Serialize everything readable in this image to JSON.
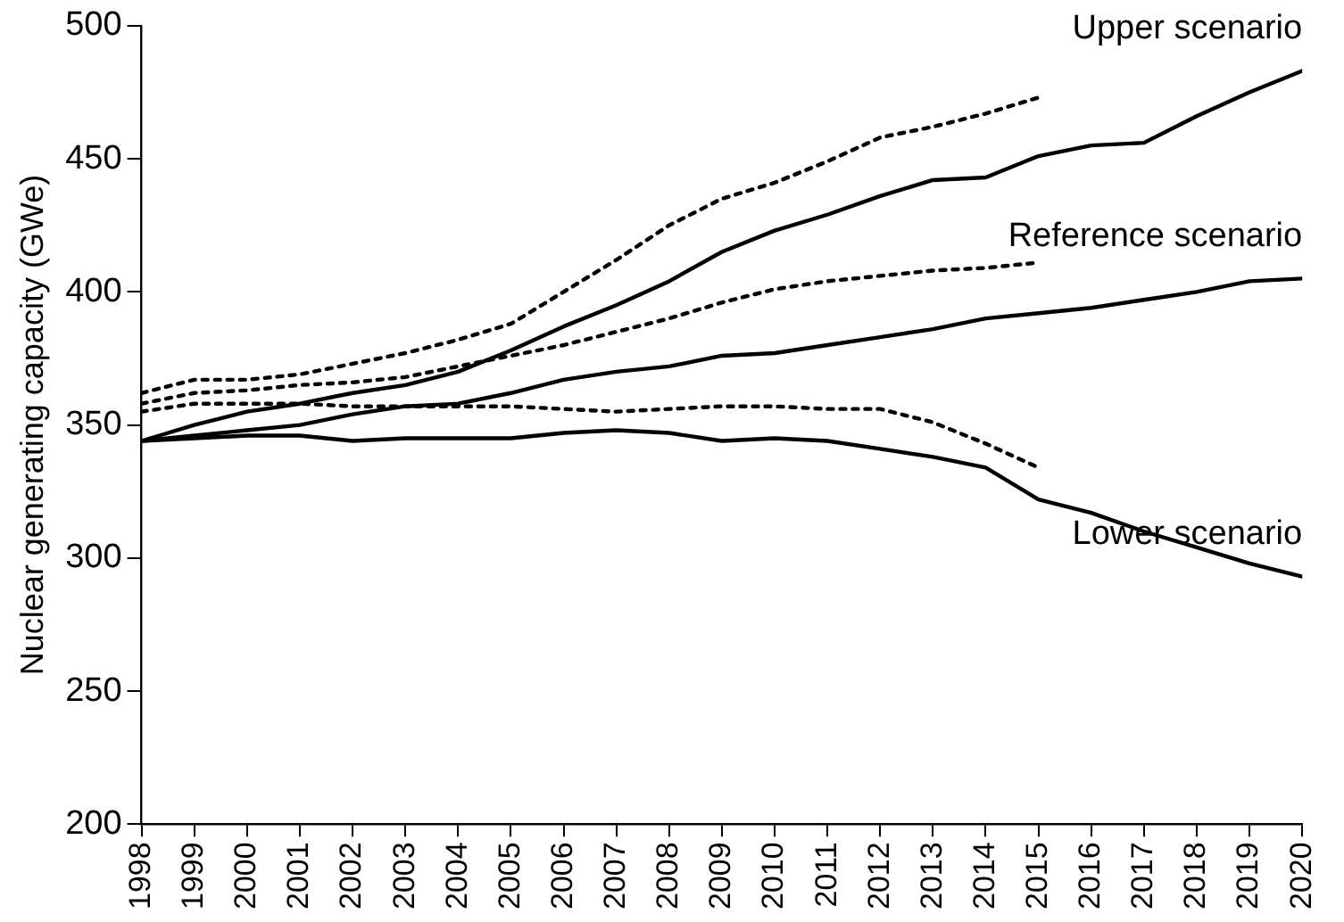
{
  "chart_data": {
    "type": "line",
    "ylabel": "Nuclear generating capacity (GWe)",
    "x": [
      1998,
      1999,
      2000,
      2001,
      2002,
      2003,
      2004,
      2005,
      2006,
      2007,
      2008,
      2009,
      2010,
      2011,
      2012,
      2013,
      2014,
      2015,
      2016,
      2017,
      2018,
      2019,
      2020
    ],
    "xlim": [
      1998,
      2020
    ],
    "xticks": [
      1998,
      1999,
      2000,
      2001,
      2002,
      2003,
      2004,
      2005,
      2006,
      2007,
      2008,
      2009,
      2010,
      2011,
      2012,
      2013,
      2014,
      2015,
      2016,
      2017,
      2018,
      2019,
      2020
    ],
    "ylim": [
      200,
      500
    ],
    "yticks": [
      200,
      250,
      300,
      350,
      400,
      450,
      500
    ],
    "grid": false,
    "legend": false,
    "marker": "none",
    "series": [
      {
        "name": "Upper scenario",
        "color": "#000000",
        "line_style": "solid",
        "values": [
          344,
          350,
          355,
          358,
          362,
          365,
          370,
          378,
          387,
          395,
          404,
          415,
          423,
          429,
          436,
          442,
          443,
          451,
          455,
          456,
          466,
          475,
          483
        ]
      },
      {
        "name": "Reference scenario",
        "color": "#000000",
        "line_style": "solid",
        "values": [
          344,
          346,
          348,
          350,
          354,
          357,
          358,
          362,
          367,
          370,
          372,
          376,
          377,
          380,
          383,
          386,
          390,
          392,
          394,
          397,
          400,
          404,
          405
        ]
      },
      {
        "name": "Lower scenario",
        "color": "#000000",
        "line_style": "solid",
        "values": [
          344,
          345,
          346,
          346,
          344,
          345,
          345,
          345,
          347,
          348,
          347,
          344,
          345,
          344,
          341,
          338,
          334,
          322,
          317,
          310,
          304,
          298,
          293
        ]
      },
      {
        "color": "#000000",
        "line_style": "dotted",
        "values": [
          362,
          367,
          367,
          369,
          373,
          377,
          382,
          388,
          400,
          412,
          425,
          435,
          441,
          449,
          458,
          462,
          467,
          473,
          null,
          null,
          null,
          null,
          null
        ]
      },
      {
        "color": "#000000",
        "line_style": "dotted",
        "values": [
          358,
          362,
          363,
          365,
          366,
          368,
          372,
          376,
          380,
          385,
          390,
          396,
          401,
          404,
          406,
          408,
          409,
          411,
          null,
          null,
          null,
          null,
          null
        ]
      },
      {
        "color": "#000000",
        "line_style": "dotted",
        "values": [
          355,
          358,
          358,
          358,
          357,
          357,
          357,
          357,
          356,
          355,
          356,
          357,
          357,
          356,
          356,
          351,
          343,
          334,
          null,
          null,
          null,
          null,
          null
        ]
      }
    ]
  }
}
